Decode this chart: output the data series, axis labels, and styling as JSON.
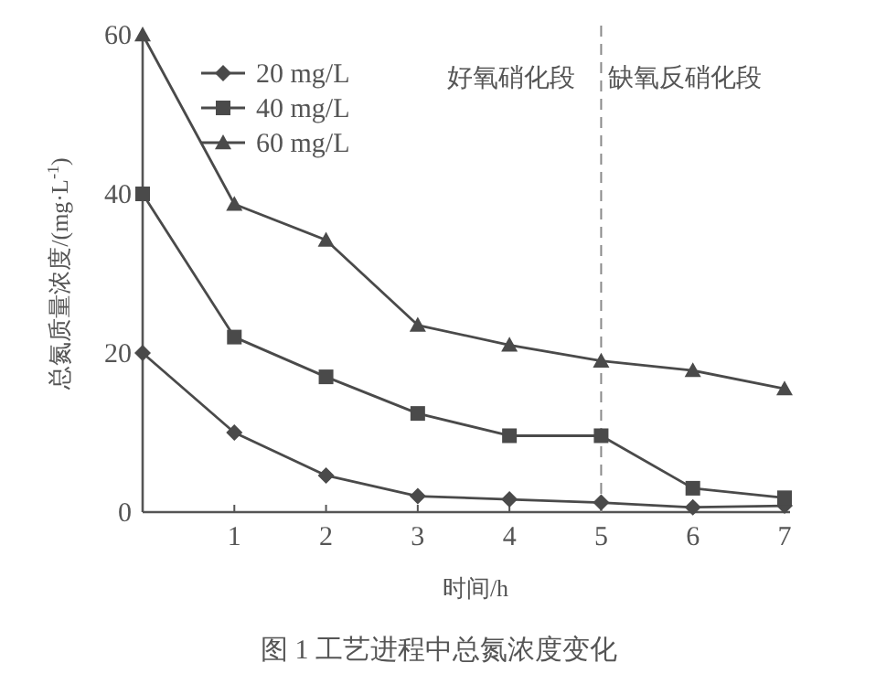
{
  "chart_data": {
    "type": "line",
    "title": "图 1 工艺进程中总氮浓度变化",
    "xlabel": "时间/h",
    "ylabel": "总氮质量浓度/(mg·L$^{-1}$)",
    "x": [
      0,
      1,
      2,
      3,
      4,
      5,
      6,
      7
    ],
    "series": [
      {
        "name": "20 mg/L",
        "color": "#4a4a4a",
        "marker": "diamond",
        "values": [
          20,
          10,
          4.6,
          2.0,
          1.6,
          1.2,
          0.6,
          0.8
        ]
      },
      {
        "name": "40 mg/L",
        "color": "#4a4a4a",
        "marker": "square",
        "values": [
          40,
          22,
          17,
          12.4,
          9.6,
          9.6,
          3.0,
          1.8
        ]
      },
      {
        "name": "60 mg/L",
        "color": "#4a4a4a",
        "marker": "triangle",
        "values": [
          60,
          38.7,
          34.2,
          23.5,
          21,
          19,
          17.8,
          15.5
        ]
      }
    ],
    "xlim": [
      0,
      7.06
    ],
    "ylim": [
      0,
      60
    ],
    "xticks": [
      1,
      2,
      3,
      4,
      5,
      6,
      7
    ],
    "yticks": [
      0,
      20,
      40,
      60
    ],
    "ref_lines": [
      {
        "axis": "x",
        "value": 5,
        "line_style": "dashed",
        "color": "#8a8a8a"
      }
    ],
    "annotations": [
      "好氧硝化段",
      "缺氧反硝化段"
    ],
    "legend": "top left",
    "grid": false,
    "line_style": "solid"
  }
}
